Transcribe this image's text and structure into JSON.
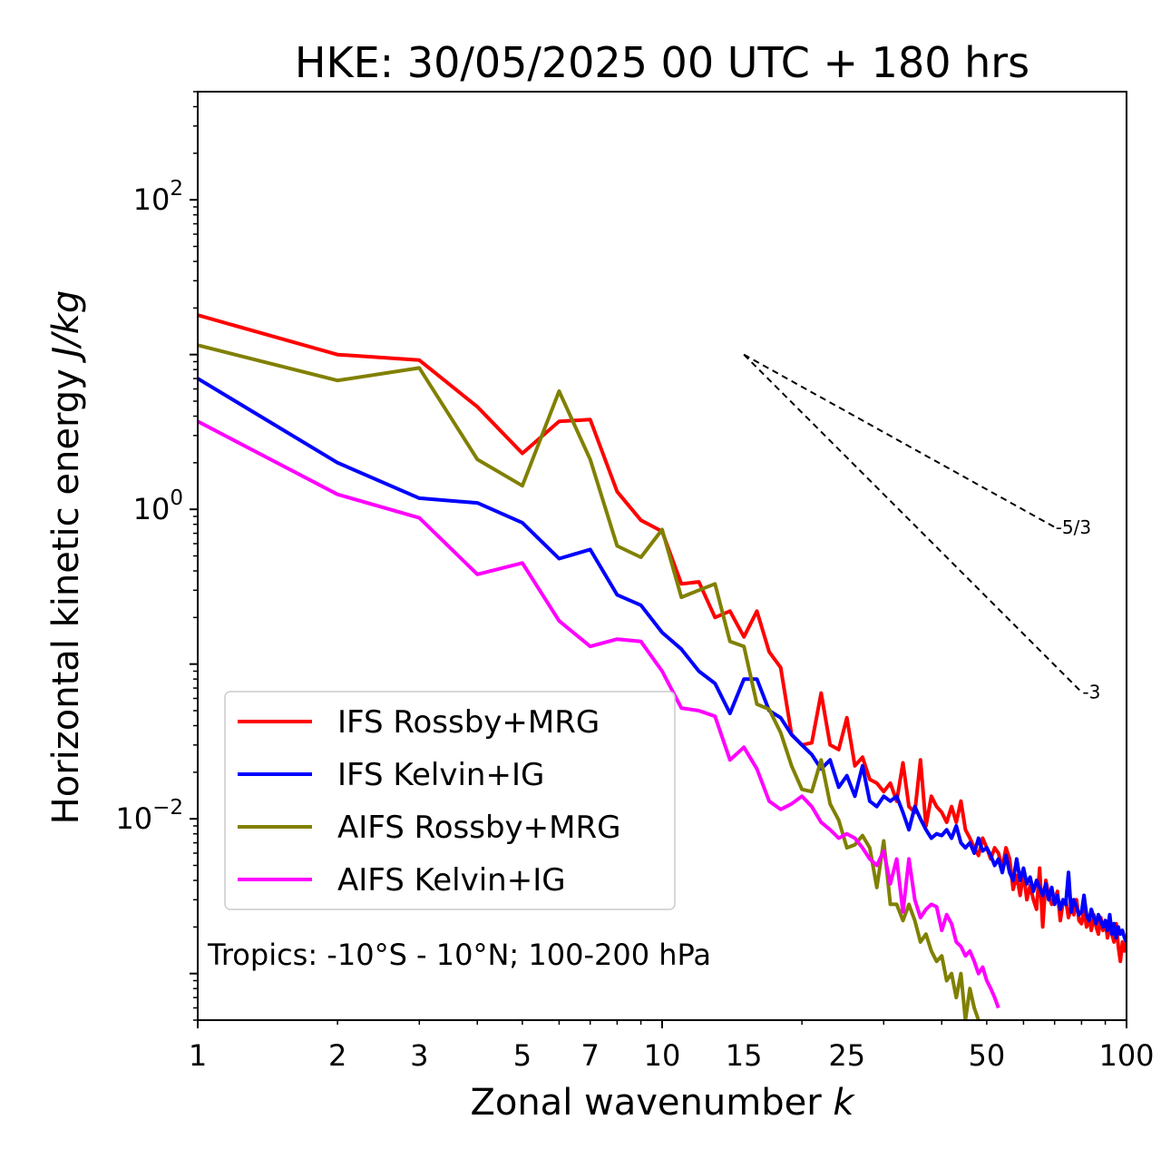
{
  "chart_data": {
    "type": "line",
    "title": "HKE: 30/05/2025 00 UTC + 180 hrs",
    "xlabel": "Zonal wavenumber",
    "xlabel_var": "k",
    "ylabel": "Horizontal kinetic energy",
    "ylabel_units": "J/kg",
    "xscale": "log",
    "yscale": "log",
    "xlim": [
      1,
      100
    ],
    "ylim": [
      0.0005,
      500
    ],
    "x_ticks": [
      {
        "value": 1,
        "label": "1"
      },
      {
        "value": 2,
        "label": "2"
      },
      {
        "value": 3,
        "label": "3"
      },
      {
        "value": 5,
        "label": "5"
      },
      {
        "value": 7,
        "label": "7"
      },
      {
        "value": 10,
        "label": "10"
      },
      {
        "value": 15,
        "label": "15"
      },
      {
        "value": 25,
        "label": "25"
      },
      {
        "value": 50,
        "label": "50"
      },
      {
        "value": 100,
        "label": "100"
      }
    ],
    "y_ticks": [
      {
        "value": 100,
        "base": "10",
        "exp": "2"
      },
      {
        "value": 1,
        "base": "10",
        "exp": "0"
      },
      {
        "value": 0.01,
        "base": "10",
        "exp": "−2"
      }
    ],
    "annotation": "Tropics: -10°S - 10°N; 100-200 hPa",
    "legend_position": "lower-left",
    "reference_slopes": [
      {
        "label": "-5/3",
        "slope": -1.6667,
        "x_start": 15,
        "x_end": 70,
        "y_start": 10
      },
      {
        "label": "-3",
        "slope": -3,
        "x_start": 15,
        "x_end": 80,
        "y_start": 10
      }
    ],
    "series": [
      {
        "name": "IFS Rossby+MRG",
        "color": "#ff0000",
        "x": [
          1,
          2,
          3,
          4,
          5,
          6,
          7,
          8,
          9,
          10,
          11,
          12,
          13,
          14,
          15,
          16,
          17,
          18,
          19,
          20,
          21,
          22,
          23,
          24,
          25,
          26,
          27,
          28,
          29,
          30,
          31,
          32,
          33,
          34,
          35,
          36,
          37,
          38,
          39,
          40,
          41,
          42,
          43,
          44,
          45,
          46,
          47,
          48,
          49,
          50,
          51,
          52,
          53,
          54,
          55,
          56,
          57,
          58,
          59,
          60,
          61,
          62,
          63,
          64,
          65,
          66,
          67,
          68,
          69,
          70,
          71,
          72,
          73,
          74,
          75,
          76,
          77,
          78,
          79,
          80,
          81,
          82,
          83,
          84,
          85,
          86,
          87,
          88,
          89,
          90,
          91,
          92,
          93,
          94,
          95,
          96,
          97,
          98,
          99,
          100
        ],
        "y": [
          18,
          10,
          9.2,
          4.6,
          2.3,
          3.7,
          3.8,
          1.3,
          0.85,
          0.72,
          0.33,
          0.34,
          0.2,
          0.22,
          0.15,
          0.22,
          0.12,
          0.095,
          0.035,
          0.03,
          0.031,
          0.065,
          0.03,
          0.028,
          0.045,
          0.022,
          0.025,
          0.018,
          0.017,
          0.015,
          0.017,
          0.013,
          0.023,
          0.012,
          0.011,
          0.024,
          0.009,
          0.014,
          0.012,
          0.011,
          0.0095,
          0.012,
          0.0095,
          0.013,
          0.0085,
          0.0075,
          0.0065,
          0.0058,
          0.0075,
          0.0065,
          0.0055,
          0.0065,
          0.006,
          0.0048,
          0.0065,
          0.0055,
          0.0035,
          0.0043,
          0.0032,
          0.0045,
          0.003,
          0.0037,
          0.003,
          0.0026,
          0.0048,
          0.002,
          0.004,
          0.0032,
          0.0028,
          0.003,
          0.0034,
          0.0022,
          0.0029,
          0.003,
          0.0023,
          0.0027,
          0.0024,
          0.003,
          0.0022,
          0.0021,
          0.0026,
          0.002,
          0.0023,
          0.0019,
          0.0024,
          0.002,
          0.0018,
          0.0023,
          0.0019,
          0.0022,
          0.0017,
          0.002,
          0.0018,
          0.0016,
          0.0021,
          0.0015,
          0.0012,
          0.0016,
          0.0014,
          0.0016
        ]
      },
      {
        "name": "IFS Kelvin+IG",
        "color": "#0000ff",
        "x": [
          1,
          2,
          3,
          4,
          5,
          6,
          7,
          8,
          9,
          10,
          11,
          12,
          13,
          14,
          15,
          16,
          17,
          18,
          19,
          20,
          21,
          22,
          23,
          24,
          25,
          26,
          27,
          28,
          29,
          30,
          31,
          32,
          33,
          34,
          35,
          36,
          37,
          38,
          39,
          40,
          41,
          42,
          43,
          44,
          45,
          46,
          47,
          48,
          49,
          50,
          51,
          52,
          53,
          54,
          55,
          56,
          57,
          58,
          59,
          60,
          61,
          62,
          63,
          64,
          65,
          66,
          67,
          68,
          69,
          70,
          71,
          72,
          73,
          74,
          75,
          76,
          77,
          78,
          79,
          80,
          81,
          82,
          83,
          84,
          85,
          86,
          87,
          88,
          89,
          90,
          91,
          92,
          93,
          94,
          95,
          96,
          97,
          98,
          99,
          100
        ],
        "y": [
          7,
          2,
          1.18,
          1.1,
          0.82,
          0.48,
          0.55,
          0.28,
          0.24,
          0.16,
          0.125,
          0.09,
          0.075,
          0.048,
          0.08,
          0.08,
          0.05,
          0.045,
          0.035,
          0.03,
          0.026,
          0.021,
          0.024,
          0.016,
          0.019,
          0.014,
          0.022,
          0.013,
          0.012,
          0.014,
          0.013,
          0.014,
          0.011,
          0.0085,
          0.012,
          0.01,
          0.0085,
          0.0075,
          0.008,
          0.0078,
          0.0085,
          0.0075,
          0.009,
          0.007,
          0.0065,
          0.007,
          0.006,
          0.0075,
          0.0062,
          0.0065,
          0.0058,
          0.005,
          0.0055,
          0.0045,
          0.0058,
          0.0045,
          0.004,
          0.0055,
          0.004,
          0.0048,
          0.0038,
          0.0042,
          0.0034,
          0.004,
          0.0036,
          0.0032,
          0.0038,
          0.003,
          0.0036,
          0.0028,
          0.0032,
          0.0026,
          0.003,
          0.0028,
          0.0045,
          0.0025,
          0.003,
          0.0027,
          0.0024,
          0.0025,
          0.0032,
          0.0024,
          0.0022,
          0.0026,
          0.0023,
          0.0021,
          0.0024,
          0.0022,
          0.002,
          0.0022,
          0.0019,
          0.0024,
          0.0018,
          0.0021,
          0.0017,
          0.002,
          0.0018,
          0.0019,
          0.0017,
          0.0016
        ]
      },
      {
        "name": "AIFS Rossby+MRG",
        "color": "#808000",
        "x": [
          1,
          2,
          3,
          4,
          5,
          6,
          7,
          8,
          9,
          10,
          11,
          12,
          13,
          14,
          15,
          16,
          17,
          18,
          19,
          20,
          21,
          22,
          23,
          24,
          25,
          26,
          27,
          28,
          29,
          30,
          31,
          32,
          33,
          34,
          35,
          36,
          37,
          38,
          39,
          40,
          41,
          42,
          43,
          44,
          45,
          46,
          47,
          48
        ],
        "y": [
          11.5,
          6.8,
          8.2,
          2.1,
          1.42,
          5.8,
          2.1,
          0.58,
          0.49,
          0.74,
          0.27,
          0.3,
          0.33,
          0.14,
          0.13,
          0.055,
          0.051,
          0.036,
          0.022,
          0.0155,
          0.015,
          0.024,
          0.0125,
          0.0098,
          0.0065,
          0.0068,
          0.0078,
          0.0065,
          0.0036,
          0.0072,
          0.0028,
          0.0028,
          0.0022,
          0.0028,
          0.0022,
          0.0016,
          0.0018,
          0.0014,
          0.0012,
          0.0013,
          0.0009,
          0.001,
          0.0007,
          0.001,
          0.0005,
          0.0008,
          0.0006,
          0.0005
        ]
      },
      {
        "name": "AIFS Kelvin+IG",
        "color": "#ff00ff",
        "x": [
          1,
          2,
          3,
          4,
          5,
          6,
          7,
          8,
          9,
          10,
          11,
          12,
          13,
          14,
          15,
          16,
          17,
          18,
          19,
          20,
          21,
          22,
          23,
          24,
          25,
          26,
          27,
          28,
          29,
          30,
          31,
          32,
          33,
          34,
          35,
          36,
          37,
          38,
          39,
          40,
          41,
          42,
          43,
          44,
          45,
          46,
          47,
          48,
          49,
          50,
          51,
          52,
          53
        ],
        "y": [
          3.7,
          1.25,
          0.88,
          0.38,
          0.45,
          0.19,
          0.13,
          0.145,
          0.14,
          0.09,
          0.052,
          0.05,
          0.046,
          0.024,
          0.029,
          0.021,
          0.013,
          0.0115,
          0.0125,
          0.014,
          0.012,
          0.0095,
          0.0085,
          0.0075,
          0.008,
          0.0075,
          0.0065,
          0.0055,
          0.005,
          0.0062,
          0.0038,
          0.0055,
          0.0025,
          0.0055,
          0.003,
          0.0023,
          0.0026,
          0.0028,
          0.0027,
          0.0019,
          0.0024,
          0.0021,
          0.0016,
          0.0015,
          0.0013,
          0.0014,
          0.0012,
          0.001,
          0.0011,
          0.0009,
          0.0008,
          0.0007,
          0.0006
        ]
      }
    ]
  }
}
